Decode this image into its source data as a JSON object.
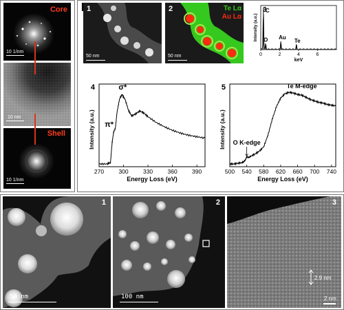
{
  "figure": {
    "panel_a": {
      "letter": "a",
      "top_label": "Core",
      "bottom_label": "Shell",
      "top_scale": "10 1/nm",
      "middle_scale": "10 nm",
      "bottom_scale": "10 1/nm"
    },
    "panel_b": {
      "letter": "b",
      "img1": {
        "num": "1",
        "scale": "50 nm"
      },
      "img2": {
        "num": "2",
        "scale": "50 nm",
        "legend_te": "Te Lα",
        "legend_au": "Au Lα"
      },
      "eds": {
        "num": "3",
        "ylabel": "Intensity (a.u.)",
        "xlabel": "keV",
        "peaks": [
          "C",
          "O",
          "Au",
          "Te"
        ],
        "ticks": [
          "0",
          "2",
          "4",
          "6"
        ]
      },
      "eels_c": {
        "num": "4",
        "ylabel": "Intensity (a.u.)",
        "xlabel": "Energy Loss (eV)",
        "ann_pi": "π*",
        "ann_sigma": "σ*",
        "ticks": [
          "270",
          "300",
          "330",
          "360",
          "390"
        ]
      },
      "eels_ote": {
        "num": "5",
        "ylabel": "Intensity (a.u.)",
        "xlabel": "Energy Loss (eV)",
        "ann_o": "O K-edge",
        "ann_te": "Te M-edge",
        "ticks": [
          "500",
          "540",
          "580",
          "620",
          "660",
          "700",
          "740"
        ]
      }
    },
    "panel_c": {
      "letter": "c",
      "img1": {
        "num": "1",
        "scale": "50 nm"
      },
      "img2": {
        "num": "2",
        "scale": "100 nm"
      },
      "img3": {
        "num": "3",
        "scale": "2 nm",
        "measure": "2.9 nm"
      }
    },
    "colors": {
      "red_label": "#ff3b1f",
      "te_green": "#35c81e",
      "au_red": "#ff2a10"
    }
  },
  "chart_data": [
    {
      "type": "bar",
      "xlabel": "keV",
      "ylabel": "Intensity (a.u.)",
      "xlim": [
        0,
        8
      ],
      "categories": [
        "C",
        "O",
        "Au",
        "Te"
      ],
      "x": [
        0.28,
        0.52,
        2.12,
        3.77
      ],
      "values": [
        1.0,
        0.14,
        0.2,
        0.12
      ]
    },
    {
      "type": "line",
      "xlabel": "Energy Loss (eV)",
      "ylabel": "Intensity (a.u.)",
      "xlim": [
        270,
        400
      ],
      "x": [
        270,
        280,
        284,
        286,
        288,
        290,
        292,
        295,
        298,
        302,
        306,
        310,
        315,
        320,
        325,
        330,
        340,
        350,
        360,
        370,
        380,
        390,
        400
      ],
      "y": [
        0.0,
        0.0,
        0.02,
        0.3,
        0.45,
        0.5,
        0.72,
        0.9,
        0.97,
        0.9,
        0.75,
        0.67,
        0.7,
        0.74,
        0.71,
        0.66,
        0.58,
        0.52,
        0.47,
        0.43,
        0.4,
        0.38,
        0.36
      ]
    },
    {
      "type": "line",
      "xlabel": "Energy Loss (eV)",
      "ylabel": "Intensity (a.u.)",
      "xlim": [
        500,
        750
      ],
      "x": [
        500,
        510,
        520,
        530,
        536,
        540,
        544,
        550,
        560,
        570,
        580,
        590,
        600,
        610,
        620,
        630,
        640,
        650,
        660,
        670,
        680,
        690,
        700,
        710,
        720,
        730,
        740,
        750
      ],
      "y": [
        0.0,
        0.0,
        0.01,
        0.02,
        0.05,
        0.1,
        0.09,
        0.11,
        0.14,
        0.18,
        0.24,
        0.4,
        0.62,
        0.8,
        0.92,
        0.98,
        1.0,
        0.99,
        0.97,
        0.96,
        0.93,
        0.9,
        0.88,
        0.86,
        0.85,
        0.83,
        0.82,
        0.81
      ]
    }
  ]
}
